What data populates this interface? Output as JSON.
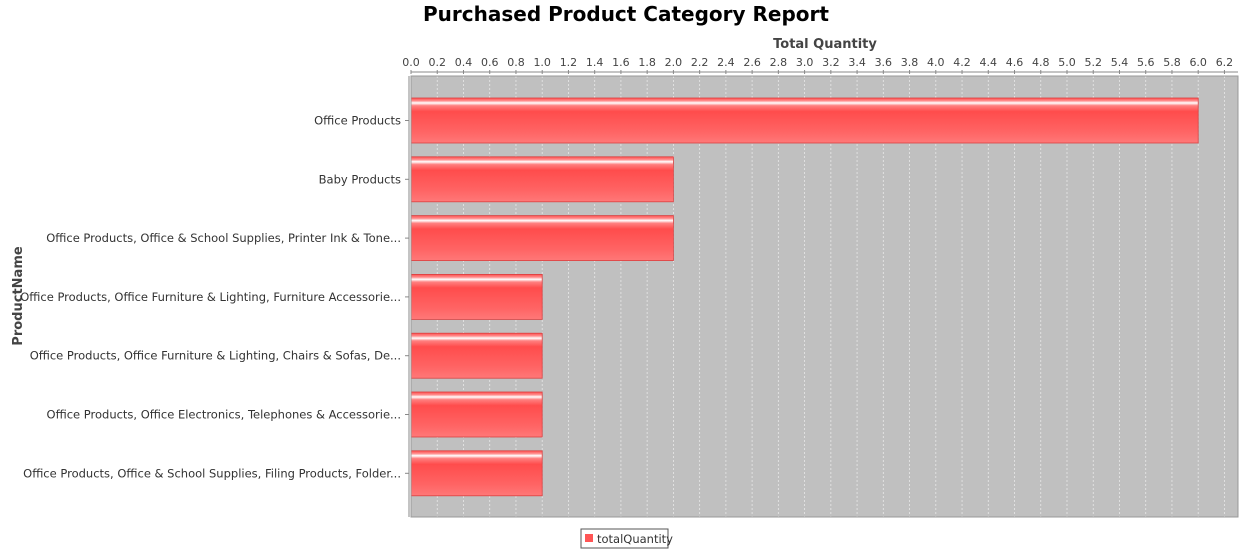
{
  "chart_data": {
    "type": "bar",
    "orientation": "horizontal",
    "title": "Purchased Product Category Report",
    "xlabel": "Total Quantity",
    "ylabel": "ProductName",
    "x_axis_position": "top",
    "xlim": [
      0,
      6.3
    ],
    "x_ticks": [
      "0.0",
      "0.2",
      "0.4",
      "0.6",
      "0.8",
      "1.0",
      "1.2",
      "1.4",
      "1.6",
      "1.8",
      "2.0",
      "2.2",
      "2.4",
      "2.6",
      "2.8",
      "3.0",
      "3.2",
      "3.4",
      "3.6",
      "3.8",
      "4.0",
      "4.2",
      "4.4",
      "4.6",
      "4.8",
      "5.0",
      "5.2",
      "5.4",
      "5.6",
      "5.8",
      "6.0",
      "6.2"
    ],
    "categories": [
      "Office Products",
      "Baby Products",
      "Office Products, Office & School Supplies, Printer Ink & Tone...",
      "Office Products, Office Furniture & Lighting, Furniture Accessorie...",
      "Office Products, Office Furniture & Lighting, Chairs & Sofas, De...",
      "Office Products, Office Electronics, Telephones & Accessorie...",
      "Office Products, Office & School Supplies, Filing Products, Folder..."
    ],
    "series": [
      {
        "name": "totalQuantity",
        "values": [
          6,
          2,
          2,
          1,
          1,
          1,
          1
        ],
        "color": "#ff5555"
      }
    ],
    "legend": "bottom",
    "grid": true,
    "plot_background": "#c0c0c0",
    "grid_color": "#e8e8e8"
  }
}
